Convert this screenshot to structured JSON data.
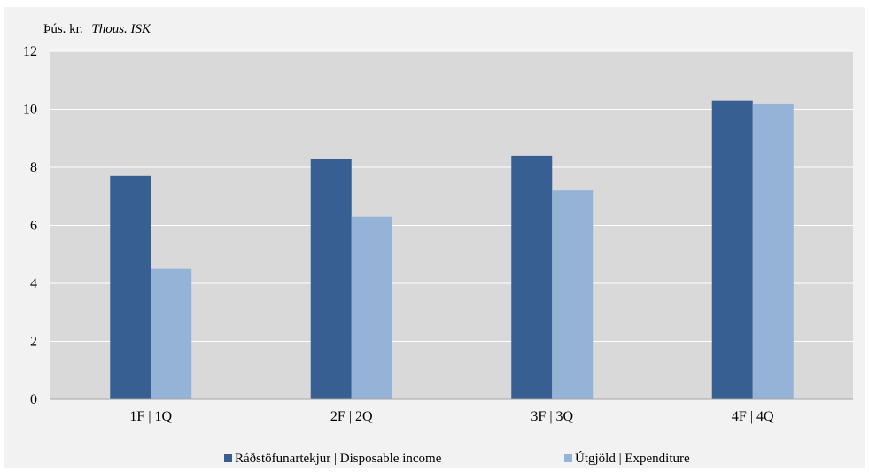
{
  "chart_data": {
    "type": "bar",
    "unit_label": "Þús. kr.",
    "unit_label_en": "Thous. ISK",
    "categories": [
      "1F | 1Q",
      "2F | 2Q",
      "3F | 3Q",
      "4F | 4Q"
    ],
    "series": [
      {
        "name": "Ráðstöfunartekjur | Disposable income",
        "color": "#375f91",
        "values": [
          7.7,
          8.3,
          8.4,
          10.3
        ]
      },
      {
        "name": "Útgjöld | Expenditure",
        "color": "#95b3d7",
        "values": [
          4.5,
          6.3,
          7.2,
          10.2
        ]
      }
    ],
    "ylim": [
      0,
      12
    ],
    "yticks": [
      "0",
      "2",
      "4",
      "6",
      "8",
      "10",
      "12"
    ],
    "grid": true,
    "plot_background": "#d9d9d9",
    "legend_position": "bottom"
  }
}
